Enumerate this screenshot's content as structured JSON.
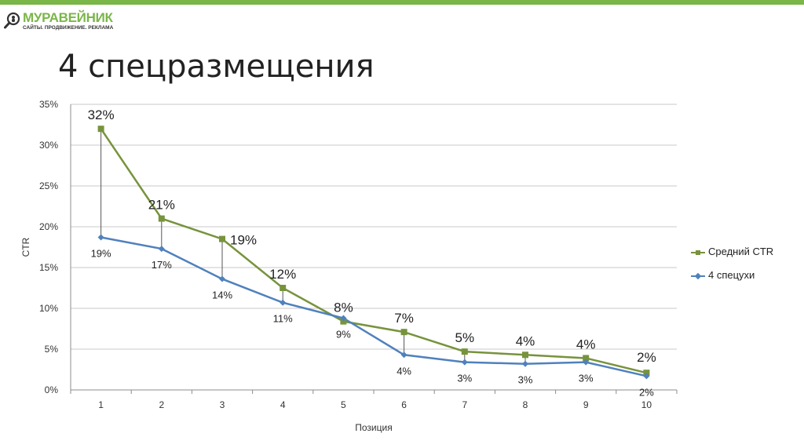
{
  "logo": {
    "name": "МУРАВЕЙНИК",
    "tagline": "САЙТЫ. ПРОДВИЖЕНИЕ. РЕКЛАМА",
    "icon": "ant-magnifier-icon"
  },
  "slide": {
    "title": "4 спецразмещения"
  },
  "colors": {
    "accent": "#7ab648",
    "series_green": "#77933c",
    "series_blue": "#4f81bd"
  },
  "chart_data": {
    "type": "line",
    "title": "",
    "xlabel": "Позиция",
    "ylabel": "CTR",
    "ylim": [
      0,
      35
    ],
    "yticks": [
      "0%",
      "5%",
      "10%",
      "15%",
      "20%",
      "25%",
      "30%",
      "35%"
    ],
    "categories": [
      "1",
      "2",
      "3",
      "4",
      "5",
      "6",
      "7",
      "8",
      "9",
      "10"
    ],
    "grid": true,
    "legend_position": "right",
    "series": [
      {
        "name": "Средний CTR",
        "marker": "square",
        "color": "#77933c",
        "values": [
          32,
          21,
          18.5,
          12.5,
          8.4,
          7.1,
          4.7,
          4.3,
          3.9,
          2.1
        ],
        "labels": [
          "32%",
          "21%",
          "19%",
          "12%",
          "8%",
          "7%",
          "5%",
          "4%",
          "4%",
          "2%"
        ]
      },
      {
        "name": "4 спецухи",
        "marker": "diamond",
        "color": "#4f81bd",
        "values": [
          18.7,
          17.3,
          13.6,
          10.7,
          8.8,
          4.3,
          3.4,
          3.2,
          3.4,
          1.7
        ],
        "labels": [
          "19%",
          "17%",
          "14%",
          "11%",
          "9%",
          "4%",
          "3%",
          "3%",
          "3%",
          "2%"
        ]
      }
    ]
  }
}
